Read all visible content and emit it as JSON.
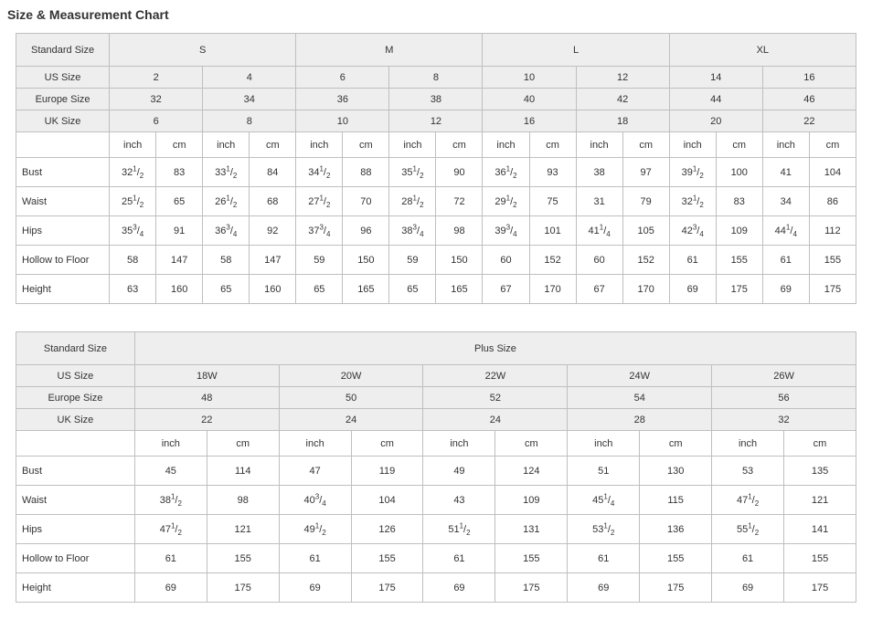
{
  "title": "Size & Measurement Chart",
  "table1": {
    "row_labels": [
      "Standard Size",
      "US Size",
      "Europe Size",
      "UK Size"
    ],
    "standard_sizes": [
      "S",
      "M",
      "L",
      "XL"
    ],
    "us_sizes": [
      "2",
      "4",
      "6",
      "8",
      "10",
      "12",
      "14",
      "16"
    ],
    "europe_sizes": [
      "32",
      "34",
      "36",
      "38",
      "40",
      "42",
      "44",
      "46"
    ],
    "uk_sizes": [
      "6",
      "8",
      "10",
      "12",
      "16",
      "18",
      "20",
      "22"
    ],
    "units": [
      "inch",
      "cm"
    ],
    "measurements": [
      {
        "label": "Bust",
        "vals": [
          [
            "32½",
            "83"
          ],
          [
            "33½",
            "84"
          ],
          [
            "34½",
            "88"
          ],
          [
            "35½",
            "90"
          ],
          [
            "36½",
            "93"
          ],
          [
            "38",
            "97"
          ],
          [
            "39½",
            "100"
          ],
          [
            "41",
            "104"
          ]
        ]
      },
      {
        "label": "Waist",
        "vals": [
          [
            "25½",
            "65"
          ],
          [
            "26½",
            "68"
          ],
          [
            "27½",
            "70"
          ],
          [
            "28½",
            "72"
          ],
          [
            "29½",
            "75"
          ],
          [
            "31",
            "79"
          ],
          [
            "32½",
            "83"
          ],
          [
            "34",
            "86"
          ]
        ]
      },
      {
        "label": "Hips",
        "vals": [
          [
            "35¾",
            "91"
          ],
          [
            "36¾",
            "92"
          ],
          [
            "37¾",
            "96"
          ],
          [
            "38¾",
            "98"
          ],
          [
            "39¾",
            "101"
          ],
          [
            "41¼",
            "105"
          ],
          [
            "42¾",
            "109"
          ],
          [
            "44¼",
            "112"
          ]
        ]
      },
      {
        "label": "Hollow to Floor",
        "vals": [
          [
            "58",
            "147"
          ],
          [
            "58",
            "147"
          ],
          [
            "59",
            "150"
          ],
          [
            "59",
            "150"
          ],
          [
            "60",
            "152"
          ],
          [
            "60",
            "152"
          ],
          [
            "61",
            "155"
          ],
          [
            "61",
            "155"
          ]
        ]
      },
      {
        "label": "Height",
        "vals": [
          [
            "63",
            "160"
          ],
          [
            "65",
            "160"
          ],
          [
            "65",
            "165"
          ],
          [
            "65",
            "165"
          ],
          [
            "67",
            "170"
          ],
          [
            "67",
            "170"
          ],
          [
            "69",
            "175"
          ],
          [
            "69",
            "175"
          ]
        ]
      }
    ],
    "colors": {
      "header_bg": "#eeeeee",
      "border": "#bfbfbf",
      "text": "#333333",
      "bg": "#ffffff"
    }
  },
  "table2": {
    "row_labels": [
      "Standard Size",
      "US Size",
      "Europe Size",
      "UK Size"
    ],
    "standard_header": "Plus Size",
    "us_sizes": [
      "18W",
      "20W",
      "22W",
      "24W",
      "26W"
    ],
    "europe_sizes": [
      "48",
      "50",
      "52",
      "54",
      "56"
    ],
    "uk_sizes": [
      "22",
      "24",
      "24",
      "28",
      "32"
    ],
    "units": [
      "inch",
      "cm"
    ],
    "measurements": [
      {
        "label": "Bust",
        "vals": [
          [
            "45",
            "114"
          ],
          [
            "47",
            "119"
          ],
          [
            "49",
            "124"
          ],
          [
            "51",
            "130"
          ],
          [
            "53",
            "135"
          ]
        ]
      },
      {
        "label": "Waist",
        "vals": [
          [
            "38½",
            "98"
          ],
          [
            "40¾",
            "104"
          ],
          [
            "43",
            "109"
          ],
          [
            "45¼",
            "115"
          ],
          [
            "47½",
            "121"
          ]
        ]
      },
      {
        "label": "Hips",
        "vals": [
          [
            "47½",
            "121"
          ],
          [
            "49½",
            "126"
          ],
          [
            "51½",
            "131"
          ],
          [
            "53½",
            "136"
          ],
          [
            "55½",
            "141"
          ]
        ]
      },
      {
        "label": "Hollow to Floor",
        "vals": [
          [
            "61",
            "155"
          ],
          [
            "61",
            "155"
          ],
          [
            "61",
            "155"
          ],
          [
            "61",
            "155"
          ],
          [
            "61",
            "155"
          ]
        ]
      },
      {
        "label": "Height",
        "vals": [
          [
            "69",
            "175"
          ],
          [
            "69",
            "175"
          ],
          [
            "69",
            "175"
          ],
          [
            "69",
            "175"
          ],
          [
            "69",
            "175"
          ]
        ]
      }
    ],
    "colors": {
      "header_bg": "#eeeeee",
      "border": "#bfbfbf",
      "text": "#333333",
      "bg": "#ffffff"
    }
  }
}
